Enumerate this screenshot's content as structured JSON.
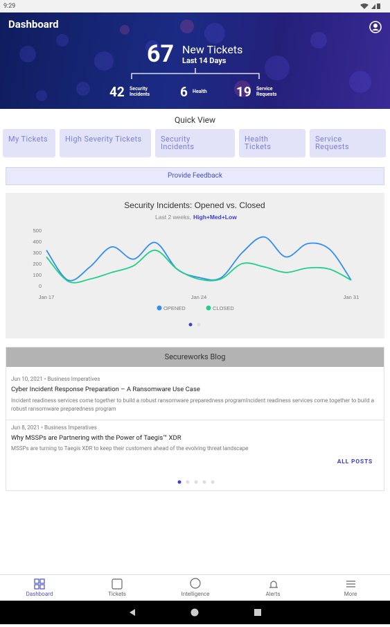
{
  "status_bar": {
    "time": "9:29"
  },
  "header": {
    "title": "Dashboard",
    "total": "67",
    "total_label": "New Tickets",
    "period": "Last 14 Days",
    "stats": [
      {
        "value": "42",
        "label": "Security Incidents"
      },
      {
        "value": "6",
        "label": "Health"
      },
      {
        "value": "19",
        "label": "Service Requests"
      }
    ]
  },
  "quick_view": {
    "title": "Quick View",
    "buttons": [
      "My Tickets",
      "High Severity Tickets",
      "Security Incidents",
      "Health Tickets",
      "Service Requests"
    ]
  },
  "feedback": "Provide Feedback",
  "chart_data": {
    "type": "line",
    "title": "Security Incidents: Opened vs. Closed",
    "subtitle": "Last 2 weeks,",
    "filter": "High+Med+Low",
    "categories": [
      "Jan 17",
      null,
      null,
      null,
      null,
      null,
      null,
      "Jan 24",
      null,
      null,
      null,
      null,
      null,
      null,
      "Jan 31"
    ],
    "series": [
      {
        "name": "OPENED",
        "color": "#2f8ef0",
        "values": [
          320,
          50,
          170,
          350,
          240,
          390,
          150,
          75,
          70,
          300,
          440,
          260,
          380,
          330,
          50
        ]
      },
      {
        "name": "CLOSED",
        "color": "#1fd08a",
        "values": [
          260,
          40,
          60,
          120,
          180,
          320,
          150,
          60,
          60,
          200,
          170,
          120,
          160,
          150,
          50
        ]
      }
    ],
    "ylim": [
      0,
      500
    ],
    "yticks": [
      0,
      100,
      200,
      300,
      400,
      500
    ],
    "grid": false
  },
  "blog": {
    "title": "Secureworks Blog",
    "posts": [
      {
        "date": "Jun 10, 2021",
        "category": "Business Imperatives",
        "title": "Cyber Incident Response Preparation – A Ransomware Use Case",
        "excerpt": "Incident readiness services come together to build a robust ransomware preparedness programIncident readiness services come together to build a robust ransomware preparedness program"
      },
      {
        "date": "Jun 8, 2021",
        "category": "Business Imperatives",
        "title": "Why MSSPs are Partnering with the Power of Taegis™ XDR",
        "excerpt": "MSSPs are turning to Taegis XDR to keep their customers ahead of the evolving threat landscape"
      }
    ],
    "all_posts": "ALL POSTS"
  },
  "nav": [
    "Dashboard",
    "Tickets",
    "Intelligence",
    "Alerts",
    "More"
  ]
}
